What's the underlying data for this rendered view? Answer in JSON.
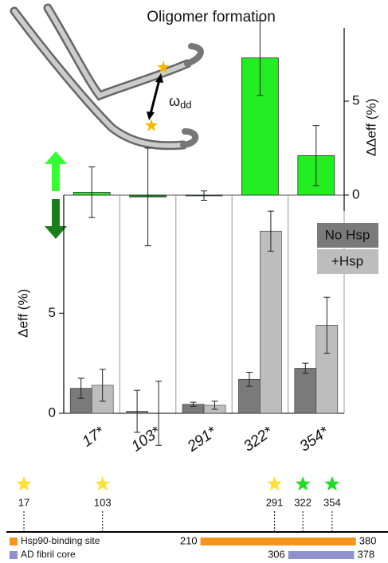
{
  "chart_data": [
    {
      "type": "bar",
      "title": "Oligomer formation",
      "y_label": "ΔΔeff (%)",
      "values": [
        0.15,
        -0.1,
        -0.03,
        7.3,
        2.1
      ],
      "errors": [
        1.35,
        2.6,
        0.25,
        2.0,
        1.6
      ],
      "color": "#22ee22",
      "negative_color": "#1a7f1a",
      "ylim": [
        -0.85,
        8.9
      ],
      "yticks": [
        0,
        5
      ]
    },
    {
      "type": "grouped_bar",
      "y_label": "Δeff (%)",
      "categories": [
        "17*",
        "103*",
        "291*",
        "322*",
        "354*"
      ],
      "series": [
        {
          "name": "No Hsp",
          "color": "#7a7a7a",
          "values": [
            1.25,
            0.1,
            0.45,
            1.7,
            2.25
          ],
          "errors": [
            0.5,
            1.05,
            0.1,
            0.35,
            0.25
          ]
        },
        {
          "name": "+Hsp",
          "color": "#bdbdbd",
          "values": [
            1.4,
            0.0,
            0.4,
            9.1,
            4.4
          ],
          "errors": [
            0.8,
            1.6,
            0.2,
            1.0,
            1.4
          ]
        }
      ],
      "ylim": [
        0,
        10.9
      ],
      "yticks": [
        0,
        5
      ]
    }
  ],
  "illustration": {
    "label": "ω",
    "label_sub": "dd"
  },
  "sequence_track": {
    "sites": [
      {
        "position": 17,
        "color": "#ffe033"
      },
      {
        "position": 103,
        "color": "#ffe033"
      },
      {
        "position": 291,
        "color": "#ffe033"
      },
      {
        "position": 322,
        "color": "#22dd22"
      },
      {
        "position": 354,
        "color": "#22dd22"
      }
    ],
    "regions": [
      {
        "name": "Hsp90-binding site",
        "start": 210,
        "end": 380,
        "color": "#f7941d"
      },
      {
        "name": "AD fibril core",
        "start": 306,
        "end": 378,
        "color": "#8e92cc"
      }
    ]
  }
}
